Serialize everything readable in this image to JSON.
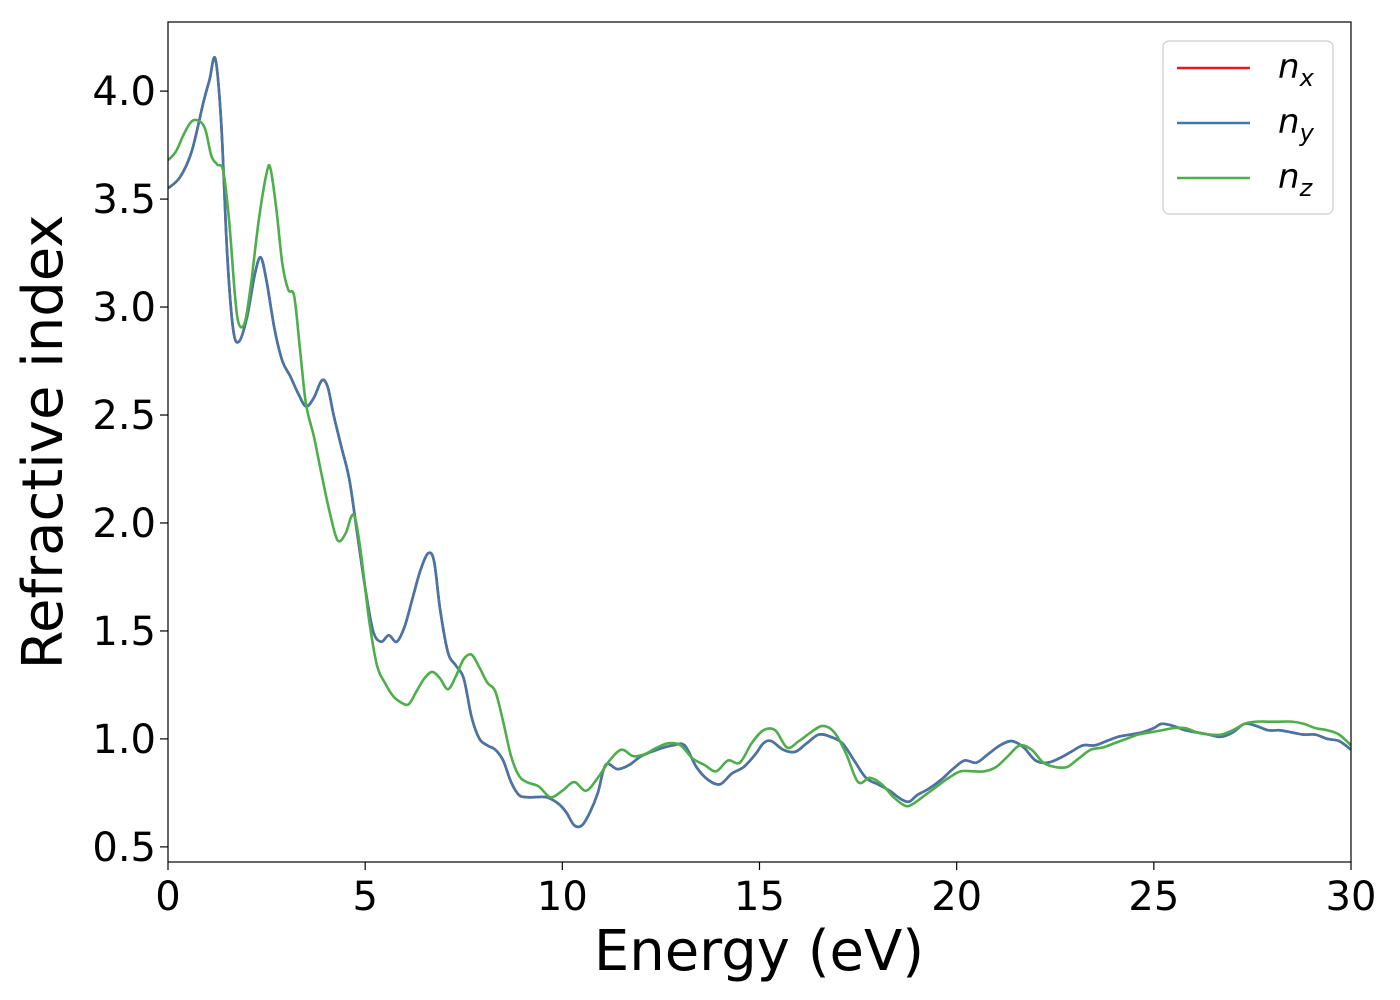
{
  "chart_data": {
    "type": "line",
    "xlabel": "Energy (eV)",
    "ylabel": "Refractive index",
    "xlim": [
      0,
      30
    ],
    "ylim": [
      0.43,
      4.32
    ],
    "xticks": [
      0,
      5,
      10,
      15,
      20,
      25,
      30
    ],
    "yticks": [
      0.5,
      1.0,
      1.5,
      2.0,
      2.5,
      3.0,
      3.5,
      4.0
    ],
    "grid": false,
    "legend_position": "top-right",
    "series": [
      {
        "name": "n",
        "sub": "x",
        "color": "#e41a1c",
        "x": [
          0,
          0.3,
          0.6,
          0.9,
          1.05,
          1.2,
          1.35,
          1.5,
          1.65,
          1.8,
          2.0,
          2.2,
          2.35,
          2.5,
          2.7,
          2.9,
          3.1,
          3.3,
          3.5,
          3.7,
          3.9,
          4.05,
          4.2,
          4.4,
          4.6,
          4.8,
          5.0,
          5.2,
          5.4,
          5.6,
          5.8,
          6.0,
          6.2,
          6.4,
          6.6,
          6.75,
          6.9,
          7.1,
          7.3,
          7.5,
          7.7,
          7.9,
          8.1,
          8.3,
          8.5,
          8.7,
          8.9,
          9.1,
          9.3,
          9.6,
          9.9,
          10.1,
          10.3,
          10.5,
          10.7,
          10.9,
          11.1,
          11.4,
          11.7,
          12.0,
          12.4,
          12.8,
          13.1,
          13.4,
          13.7,
          14.0,
          14.3,
          14.6,
          14.9,
          15.1,
          15.3,
          15.6,
          15.9,
          16.2,
          16.5,
          16.8,
          17.1,
          17.4,
          17.7,
          18.0,
          18.3,
          18.6,
          18.8,
          19.0,
          19.3,
          19.6,
          19.9,
          20.2,
          20.5,
          20.8,
          21.1,
          21.4,
          21.7,
          22.0,
          22.3,
          22.6,
          22.9,
          23.2,
          23.5,
          23.8,
          24.1,
          24.4,
          24.7,
          25.0,
          25.2,
          25.5,
          25.8,
          26.1,
          26.4,
          26.7,
          27.0,
          27.3,
          27.6,
          27.9,
          28.2,
          28.5,
          28.8,
          29.1,
          29.4,
          29.7,
          30.0
        ],
        "y": [
          3.55,
          3.6,
          3.72,
          3.95,
          4.05,
          4.15,
          3.85,
          3.25,
          2.9,
          2.84,
          2.95,
          3.15,
          3.23,
          3.12,
          2.9,
          2.75,
          2.68,
          2.6,
          2.54,
          2.58,
          2.66,
          2.63,
          2.5,
          2.35,
          2.2,
          1.95,
          1.7,
          1.5,
          1.45,
          1.48,
          1.45,
          1.52,
          1.65,
          1.78,
          1.86,
          1.82,
          1.6,
          1.4,
          1.34,
          1.28,
          1.1,
          1.0,
          0.97,
          0.95,
          0.9,
          0.8,
          0.74,
          0.73,
          0.73,
          0.73,
          0.7,
          0.66,
          0.6,
          0.6,
          0.66,
          0.75,
          0.88,
          0.86,
          0.88,
          0.92,
          0.95,
          0.97,
          0.97,
          0.87,
          0.81,
          0.79,
          0.84,
          0.87,
          0.93,
          0.98,
          0.99,
          0.95,
          0.94,
          0.98,
          1.02,
          1.01,
          0.98,
          0.9,
          0.82,
          0.79,
          0.76,
          0.72,
          0.71,
          0.74,
          0.77,
          0.81,
          0.86,
          0.9,
          0.89,
          0.93,
          0.97,
          0.99,
          0.96,
          0.9,
          0.89,
          0.91,
          0.94,
          0.97,
          0.97,
          0.99,
          1.01,
          1.02,
          1.03,
          1.05,
          1.07,
          1.06,
          1.04,
          1.03,
          1.02,
          1.01,
          1.03,
          1.07,
          1.06,
          1.04,
          1.04,
          1.03,
          1.02,
          1.02,
          1.0,
          0.99,
          0.95
        ]
      },
      {
        "name": "n",
        "sub": "y",
        "color": "#4377a9",
        "x": [
          0,
          0.3,
          0.6,
          0.9,
          1.05,
          1.2,
          1.35,
          1.5,
          1.65,
          1.8,
          2.0,
          2.2,
          2.35,
          2.5,
          2.7,
          2.9,
          3.1,
          3.3,
          3.5,
          3.7,
          3.9,
          4.05,
          4.2,
          4.4,
          4.6,
          4.8,
          5.0,
          5.2,
          5.4,
          5.6,
          5.8,
          6.0,
          6.2,
          6.4,
          6.6,
          6.75,
          6.9,
          7.1,
          7.3,
          7.5,
          7.7,
          7.9,
          8.1,
          8.3,
          8.5,
          8.7,
          8.9,
          9.1,
          9.3,
          9.6,
          9.9,
          10.1,
          10.3,
          10.5,
          10.7,
          10.9,
          11.1,
          11.4,
          11.7,
          12.0,
          12.4,
          12.8,
          13.1,
          13.4,
          13.7,
          14.0,
          14.3,
          14.6,
          14.9,
          15.1,
          15.3,
          15.6,
          15.9,
          16.2,
          16.5,
          16.8,
          17.1,
          17.4,
          17.7,
          18.0,
          18.3,
          18.6,
          18.8,
          19.0,
          19.3,
          19.6,
          19.9,
          20.2,
          20.5,
          20.8,
          21.1,
          21.4,
          21.7,
          22.0,
          22.3,
          22.6,
          22.9,
          23.2,
          23.5,
          23.8,
          24.1,
          24.4,
          24.7,
          25.0,
          25.2,
          25.5,
          25.8,
          26.1,
          26.4,
          26.7,
          27.0,
          27.3,
          27.6,
          27.9,
          28.2,
          28.5,
          28.8,
          29.1,
          29.4,
          29.7,
          30.0
        ],
        "y": [
          3.55,
          3.6,
          3.72,
          3.95,
          4.05,
          4.15,
          3.85,
          3.25,
          2.9,
          2.84,
          2.95,
          3.15,
          3.23,
          3.12,
          2.9,
          2.75,
          2.68,
          2.6,
          2.54,
          2.58,
          2.66,
          2.63,
          2.5,
          2.35,
          2.2,
          1.95,
          1.7,
          1.5,
          1.45,
          1.48,
          1.45,
          1.52,
          1.65,
          1.78,
          1.86,
          1.82,
          1.6,
          1.4,
          1.34,
          1.28,
          1.1,
          1.0,
          0.97,
          0.95,
          0.9,
          0.8,
          0.74,
          0.73,
          0.73,
          0.73,
          0.7,
          0.66,
          0.6,
          0.6,
          0.66,
          0.75,
          0.88,
          0.86,
          0.88,
          0.92,
          0.95,
          0.97,
          0.97,
          0.87,
          0.81,
          0.79,
          0.84,
          0.87,
          0.93,
          0.98,
          0.99,
          0.95,
          0.94,
          0.98,
          1.02,
          1.01,
          0.98,
          0.9,
          0.82,
          0.79,
          0.76,
          0.72,
          0.71,
          0.74,
          0.77,
          0.81,
          0.86,
          0.9,
          0.89,
          0.93,
          0.97,
          0.99,
          0.96,
          0.9,
          0.89,
          0.91,
          0.94,
          0.97,
          0.97,
          0.99,
          1.01,
          1.02,
          1.03,
          1.05,
          1.07,
          1.06,
          1.04,
          1.03,
          1.02,
          1.01,
          1.03,
          1.07,
          1.06,
          1.04,
          1.04,
          1.03,
          1.02,
          1.02,
          1.0,
          0.99,
          0.95
        ]
      },
      {
        "name": "n",
        "sub": "z",
        "color": "#4daf4a",
        "x": [
          0,
          0.2,
          0.4,
          0.6,
          0.8,
          0.95,
          1.1,
          1.25,
          1.4,
          1.55,
          1.7,
          1.8,
          1.95,
          2.1,
          2.3,
          2.5,
          2.6,
          2.75,
          2.9,
          3.05,
          3.2,
          3.35,
          3.5,
          3.7,
          3.9,
          4.1,
          4.3,
          4.5,
          4.65,
          4.75,
          4.9,
          5.1,
          5.3,
          5.5,
          5.7,
          5.9,
          6.1,
          6.3,
          6.5,
          6.7,
          6.9,
          7.1,
          7.3,
          7.5,
          7.7,
          7.9,
          8.1,
          8.3,
          8.5,
          8.7,
          8.9,
          9.1,
          9.4,
          9.7,
          10.0,
          10.3,
          10.6,
          10.9,
          11.2,
          11.5,
          11.8,
          12.1,
          12.4,
          12.7,
          13.0,
          13.3,
          13.6,
          13.9,
          14.2,
          14.5,
          14.8,
          15.1,
          15.4,
          15.7,
          16.0,
          16.3,
          16.6,
          16.9,
          17.2,
          17.5,
          17.8,
          18.1,
          18.4,
          18.7,
          18.9,
          19.2,
          19.5,
          19.8,
          20.1,
          20.4,
          20.7,
          21.0,
          21.3,
          21.6,
          21.9,
          22.2,
          22.5,
          22.8,
          23.1,
          23.4,
          23.7,
          24.0,
          24.3,
          24.6,
          24.9,
          25.2,
          25.5,
          25.8,
          26.1,
          26.4,
          26.7,
          27.0,
          27.3,
          27.6,
          27.9,
          28.2,
          28.5,
          28.8,
          29.1,
          29.4,
          29.7,
          30.0
        ],
        "y": [
          3.68,
          3.72,
          3.8,
          3.86,
          3.86,
          3.82,
          3.7,
          3.66,
          3.63,
          3.4,
          3.05,
          2.92,
          2.93,
          3.1,
          3.4,
          3.62,
          3.64,
          3.45,
          3.2,
          3.08,
          3.05,
          2.8,
          2.55,
          2.4,
          2.22,
          2.05,
          1.92,
          1.95,
          2.03,
          2.02,
          1.85,
          1.55,
          1.34,
          1.26,
          1.2,
          1.17,
          1.16,
          1.22,
          1.28,
          1.31,
          1.28,
          1.23,
          1.29,
          1.37,
          1.39,
          1.33,
          1.26,
          1.22,
          1.08,
          0.92,
          0.83,
          0.8,
          0.78,
          0.73,
          0.76,
          0.8,
          0.76,
          0.82,
          0.9,
          0.95,
          0.92,
          0.93,
          0.96,
          0.98,
          0.97,
          0.91,
          0.88,
          0.85,
          0.9,
          0.89,
          0.98,
          1.04,
          1.04,
          0.96,
          0.99,
          1.03,
          1.06,
          1.03,
          0.93,
          0.8,
          0.82,
          0.79,
          0.73,
          0.69,
          0.7,
          0.74,
          0.78,
          0.82,
          0.85,
          0.85,
          0.85,
          0.87,
          0.92,
          0.97,
          0.95,
          0.89,
          0.87,
          0.87,
          0.91,
          0.95,
          0.96,
          0.98,
          1.0,
          1.02,
          1.03,
          1.04,
          1.05,
          1.05,
          1.03,
          1.02,
          1.02,
          1.04,
          1.07,
          1.08,
          1.08,
          1.08,
          1.08,
          1.07,
          1.05,
          1.04,
          1.02,
          0.97
        ]
      }
    ]
  }
}
